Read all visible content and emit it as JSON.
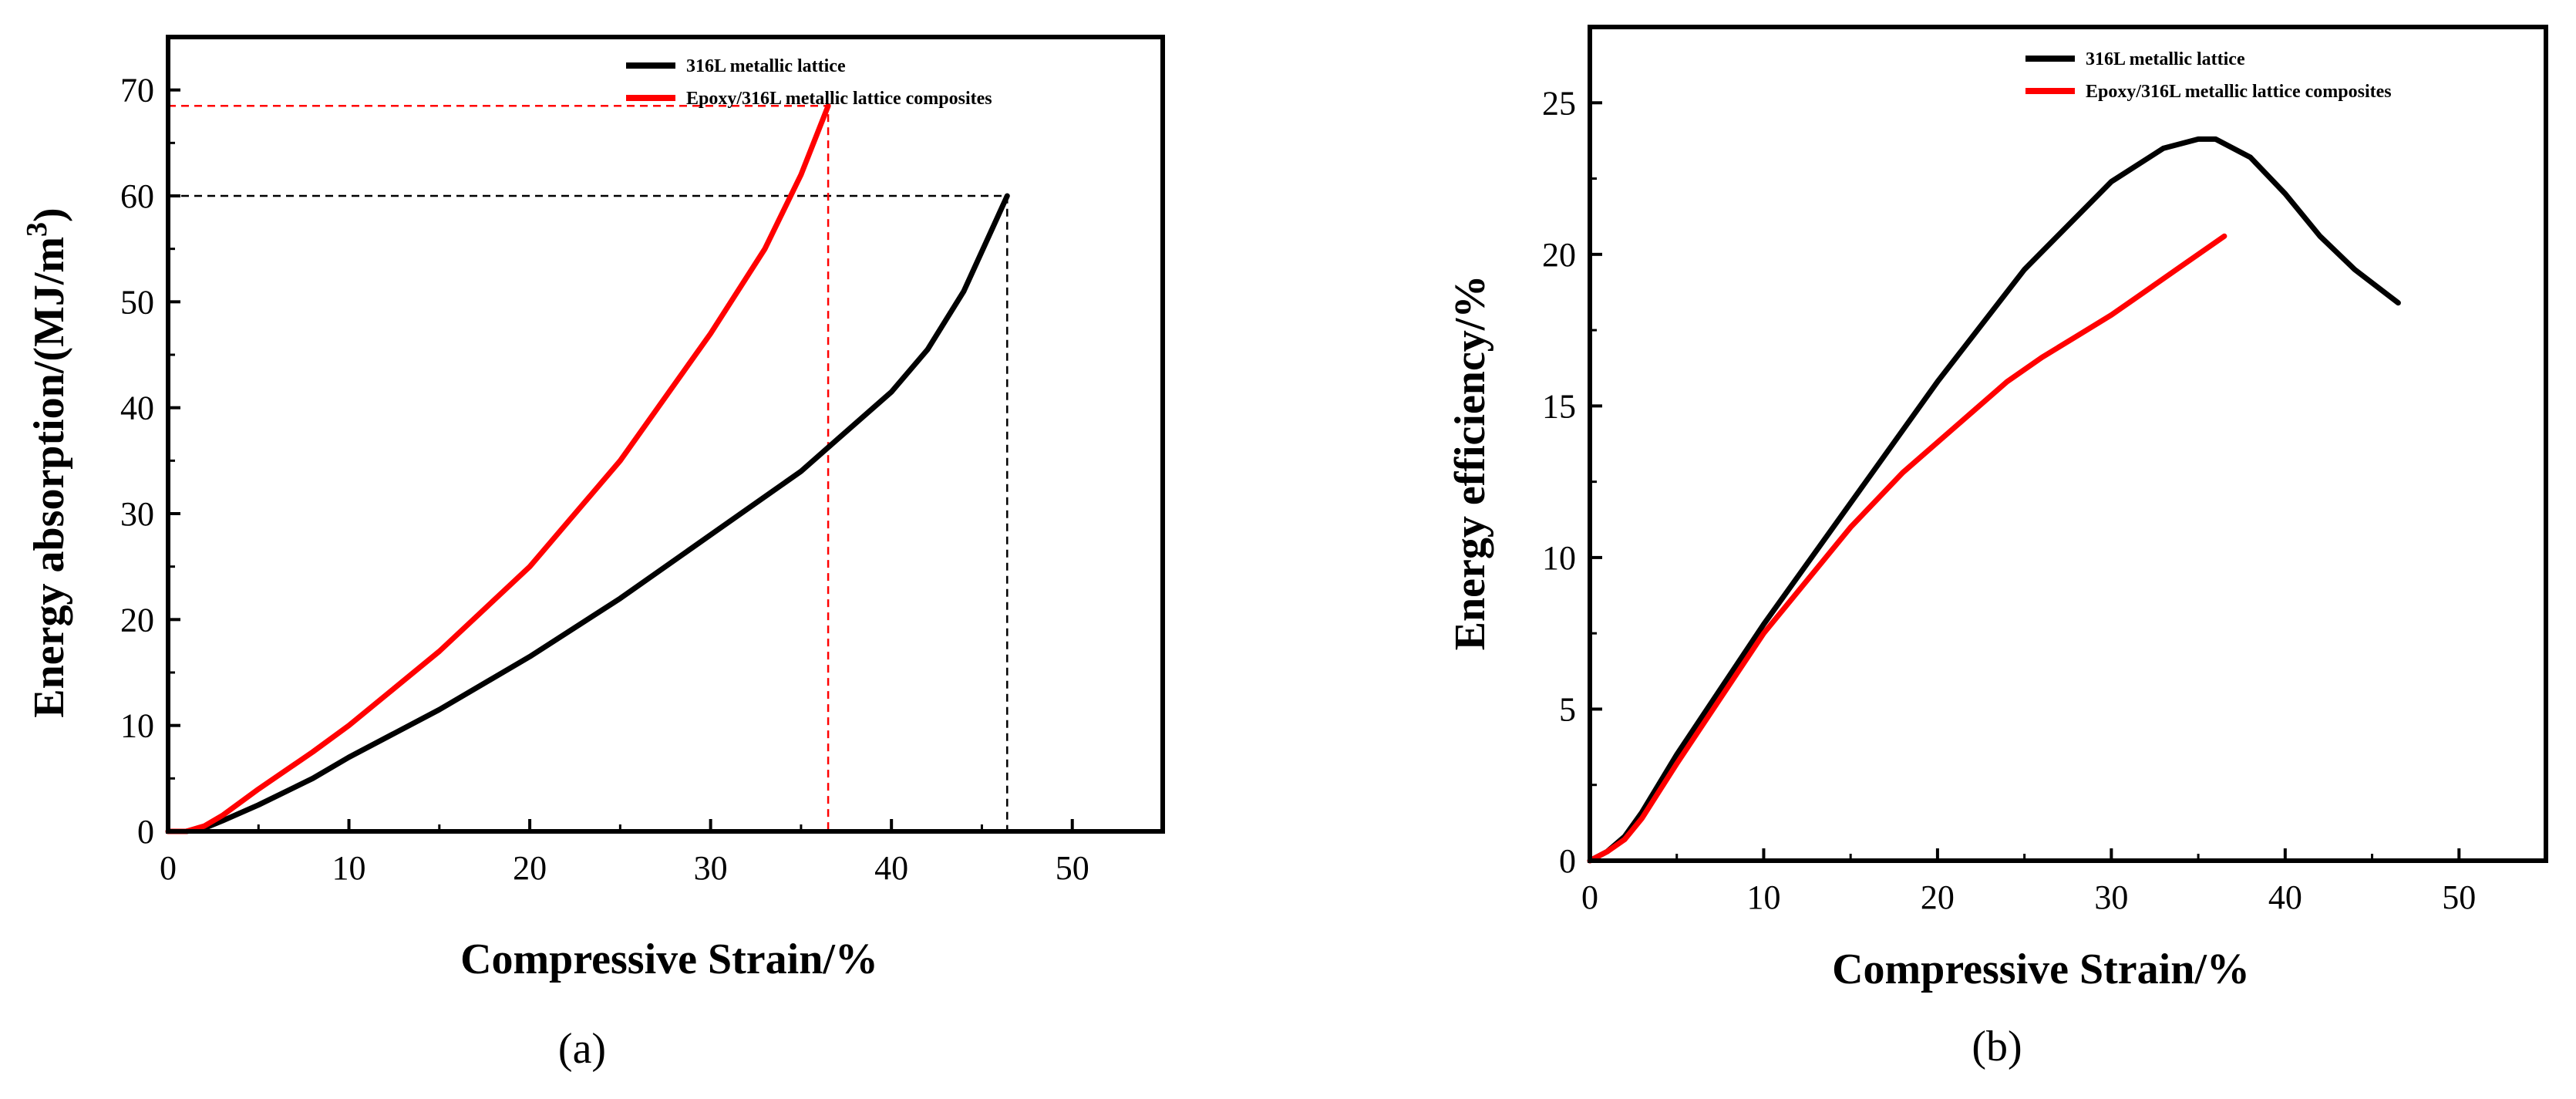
{
  "chart_data": [
    {
      "type": "line",
      "panel_label": "(a)",
      "xlabel": "Compressive Strain/%",
      "ylabel_main": "Energy absorption/(MJ/m",
      "ylabel_sup": "3",
      "ylabel_close": ")",
      "xlim": [
        0,
        55
      ],
      "ylim": [
        0,
        75
      ],
      "xticks": [
        0,
        10,
        20,
        30,
        40,
        50
      ],
      "yticks": [
        0,
        10,
        20,
        30,
        40,
        50,
        60,
        70
      ],
      "legend_position": "top-right",
      "series": [
        {
          "name": "316L metallic lattice",
          "color": "#000000",
          "x": [
            0,
            1,
            2,
            3,
            5,
            8,
            10,
            15,
            20,
            25,
            30,
            35,
            37,
            40,
            42,
            44,
            46.4
          ],
          "y": [
            0,
            0,
            0.3,
            1.0,
            2.5,
            5.0,
            7.0,
            11.5,
            16.5,
            22.0,
            28.0,
            34.0,
            37.0,
            41.5,
            45.5,
            51.0,
            60.0
          ]
        },
        {
          "name": "Epoxy/316L metallic lattice composites",
          "color": "#ff0000",
          "x": [
            0,
            1,
            2,
            3,
            5,
            8,
            10,
            15,
            20,
            25,
            30,
            33,
            35,
            36.5
          ],
          "y": [
            0,
            0,
            0.5,
            1.5,
            4.0,
            7.5,
            10.0,
            17.0,
            25.0,
            35.0,
            47.0,
            55.0,
            62.0,
            68.5
          ]
        }
      ],
      "reference_lines": [
        {
          "color": "#000000",
          "x": 46.4,
          "y": 60
        },
        {
          "color": "#ff0000",
          "x": 36.5,
          "y": 68.5
        }
      ]
    },
    {
      "type": "line",
      "panel_label": "(b)",
      "xlabel": "Compressive Strain/%",
      "ylabel": "Energy efficiency/%",
      "xlim": [
        0,
        55
      ],
      "ylim": [
        0,
        27.5
      ],
      "xticks": [
        0,
        10,
        20,
        30,
        40,
        50
      ],
      "yticks": [
        0,
        5,
        10,
        15,
        20,
        25
      ],
      "legend_position": "top-right",
      "series": [
        {
          "name": "316L metallic lattice",
          "color": "#000000",
          "x": [
            0,
            1,
            2,
            3,
            5,
            10,
            15,
            20,
            25,
            30,
            33,
            35,
            36,
            38,
            40,
            42,
            44,
            46.5
          ],
          "y": [
            0,
            0.3,
            0.8,
            1.6,
            3.5,
            7.8,
            11.8,
            15.8,
            19.5,
            22.4,
            23.5,
            23.8,
            23.8,
            23.2,
            22.0,
            20.6,
            19.5,
            18.4
          ]
        },
        {
          "name": "Epoxy/316L metallic lattice composites",
          "color": "#ff0000",
          "x": [
            0,
            1,
            2,
            3,
            5,
            10,
            15,
            18,
            20,
            22,
            24,
            26,
            28,
            30,
            32,
            34,
            36.5
          ],
          "y": [
            0,
            0.3,
            0.7,
            1.4,
            3.2,
            7.5,
            11.0,
            12.8,
            13.8,
            14.8,
            15.8,
            16.6,
            17.3,
            18.0,
            18.8,
            19.6,
            20.6
          ]
        }
      ]
    }
  ]
}
